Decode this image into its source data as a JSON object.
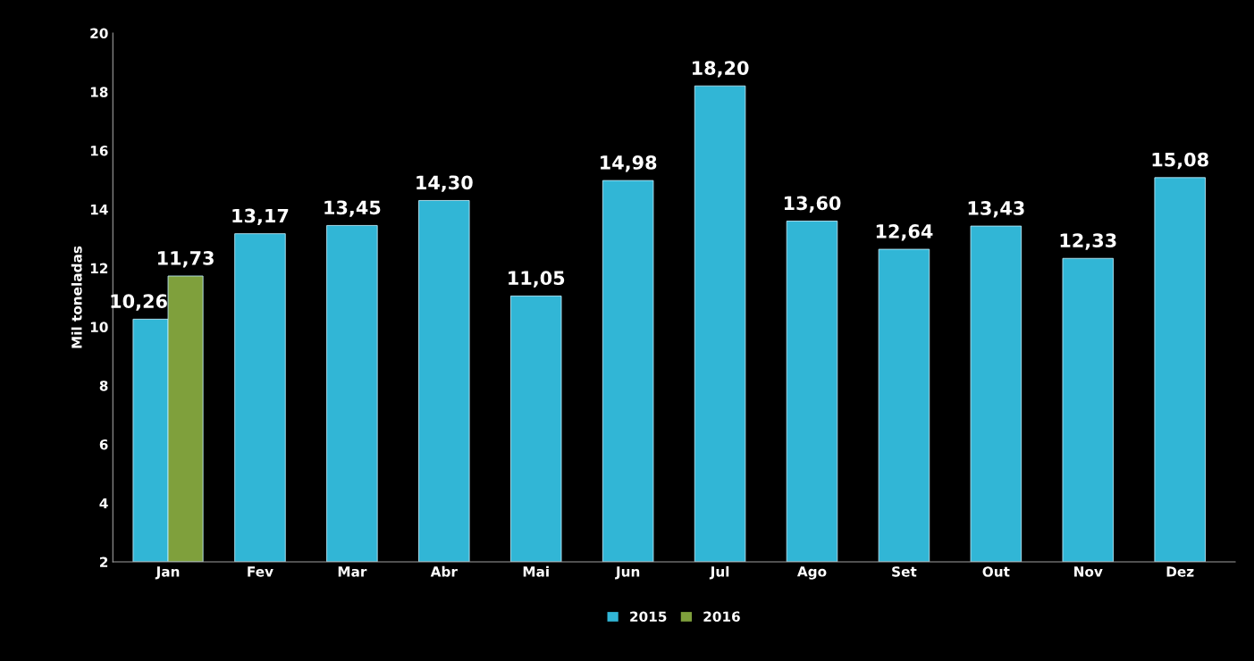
{
  "chart_data": {
    "type": "bar",
    "ylabel": "Mil toneladas",
    "categories": [
      "Jan",
      "Fev",
      "Mar",
      "Abr",
      "Mai",
      "Jun",
      "Jul",
      "Ago",
      "Set",
      "Out",
      "Nov",
      "Dez"
    ],
    "series": [
      {
        "name": "2015",
        "color": "#31b6d6",
        "values": [
          10.26,
          13.17,
          13.45,
          14.3,
          11.05,
          14.98,
          18.2,
          13.6,
          12.64,
          13.43,
          12.33,
          15.08
        ],
        "value_labels": [
          "10,26",
          "13,17",
          "13,45",
          "14,30",
          "11,05",
          "14,98",
          "18,20",
          "13,60",
          "12,64",
          "13,43",
          "12,33",
          "15,08"
        ]
      },
      {
        "name": "2016",
        "color": "#7fa03c",
        "values": [
          11.73,
          null,
          null,
          null,
          null,
          null,
          null,
          null,
          null,
          null,
          null,
          null
        ],
        "value_labels": [
          "11,73",
          null,
          null,
          null,
          null,
          null,
          null,
          null,
          null,
          null,
          null,
          null
        ]
      }
    ],
    "ylim": [
      2,
      20
    ],
    "yticks": [
      2,
      4,
      6,
      8,
      10,
      12,
      14,
      16,
      18,
      20
    ],
    "grid": false,
    "legend": "bottom"
  }
}
